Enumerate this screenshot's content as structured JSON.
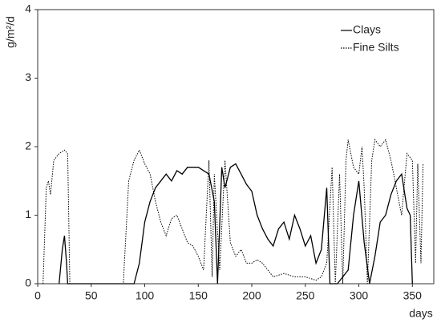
{
  "chart_data": {
    "type": "line",
    "ylabel": "g/m²/d",
    "xlabel": "days",
    "xlim": [
      0,
      370
    ],
    "ylim": [
      0,
      4
    ],
    "xticks": [
      0,
      50,
      100,
      150,
      200,
      250,
      300,
      350
    ],
    "yticks": [
      0,
      1,
      2,
      3,
      4
    ],
    "legend": "top-right",
    "series": [
      {
        "name": "Clays",
        "color": "#000000",
        "style": "solid",
        "x": [
          20,
          23,
          25,
          27,
          28,
          40,
          60,
          80,
          90,
          95,
          100,
          105,
          110,
          115,
          120,
          125,
          130,
          135,
          140,
          145,
          150,
          155,
          160,
          165,
          168,
          172,
          175,
          180,
          185,
          190,
          195,
          200,
          205,
          210,
          215,
          220,
          225,
          230,
          235,
          240,
          245,
          250,
          255,
          260,
          265,
          270,
          273,
          280,
          290,
          295,
          300,
          305,
          310,
          315,
          320,
          325,
          330,
          335,
          340,
          345,
          348,
          350
        ],
        "values": [
          0,
          0.5,
          0.7,
          0.3,
          0,
          0,
          0,
          0,
          0,
          0.3,
          0.9,
          1.2,
          1.4,
          1.5,
          1.6,
          1.5,
          1.65,
          1.6,
          1.7,
          1.7,
          1.7,
          1.65,
          1.6,
          1.2,
          0,
          1.7,
          1.4,
          1.7,
          1.75,
          1.6,
          1.45,
          1.35,
          1.0,
          0.8,
          0.65,
          0.55,
          0.8,
          0.9,
          0.65,
          1.0,
          0.8,
          0.55,
          0.7,
          0.3,
          0.5,
          1.4,
          0,
          0,
          0.2,
          1.0,
          1.5,
          0.6,
          0,
          0.4,
          0.9,
          1.0,
          1.3,
          1.5,
          1.6,
          1.1,
          1.0,
          0
        ]
      },
      {
        "name": "Fine Silts",
        "color": "#000000",
        "style": "dotted",
        "x": [
          5,
          8,
          10,
          12,
          15,
          20,
          25,
          28,
          30,
          80,
          85,
          90,
          95,
          100,
          105,
          110,
          115,
          120,
          125,
          130,
          135,
          140,
          145,
          150,
          155,
          160,
          163,
          165,
          170,
          175,
          180,
          185,
          190,
          195,
          200,
          205,
          210,
          215,
          220,
          230,
          240,
          250,
          260,
          265,
          270,
          275,
          278,
          282,
          285,
          288,
          290,
          295,
          300,
          303,
          305,
          308,
          312,
          315,
          320,
          325,
          330,
          335,
          340,
          345,
          350,
          353,
          355,
          358,
          360
        ],
        "values": [
          0,
          1.4,
          1.5,
          1.3,
          1.8,
          1.9,
          1.95,
          1.9,
          0,
          0,
          1.5,
          1.8,
          1.95,
          1.75,
          1.6,
          1.2,
          0.9,
          0.7,
          0.95,
          1.0,
          0.8,
          0.6,
          0.55,
          0.4,
          0.2,
          1.8,
          0.1,
          1.6,
          0.2,
          1.8,
          0.6,
          0.4,
          0.5,
          0.3,
          0.3,
          0.35,
          0.3,
          0.2,
          0.1,
          0.15,
          0.1,
          0.1,
          0.05,
          0.1,
          0.3,
          1.7,
          0,
          1.6,
          0,
          1.8,
          2.1,
          1.7,
          1.6,
          2.0,
          1.4,
          0,
          1.8,
          2.1,
          2.0,
          2.1,
          1.8,
          1.4,
          1.0,
          1.9,
          1.8,
          0.3,
          1.75,
          0.3,
          1.75
        ]
      }
    ]
  }
}
